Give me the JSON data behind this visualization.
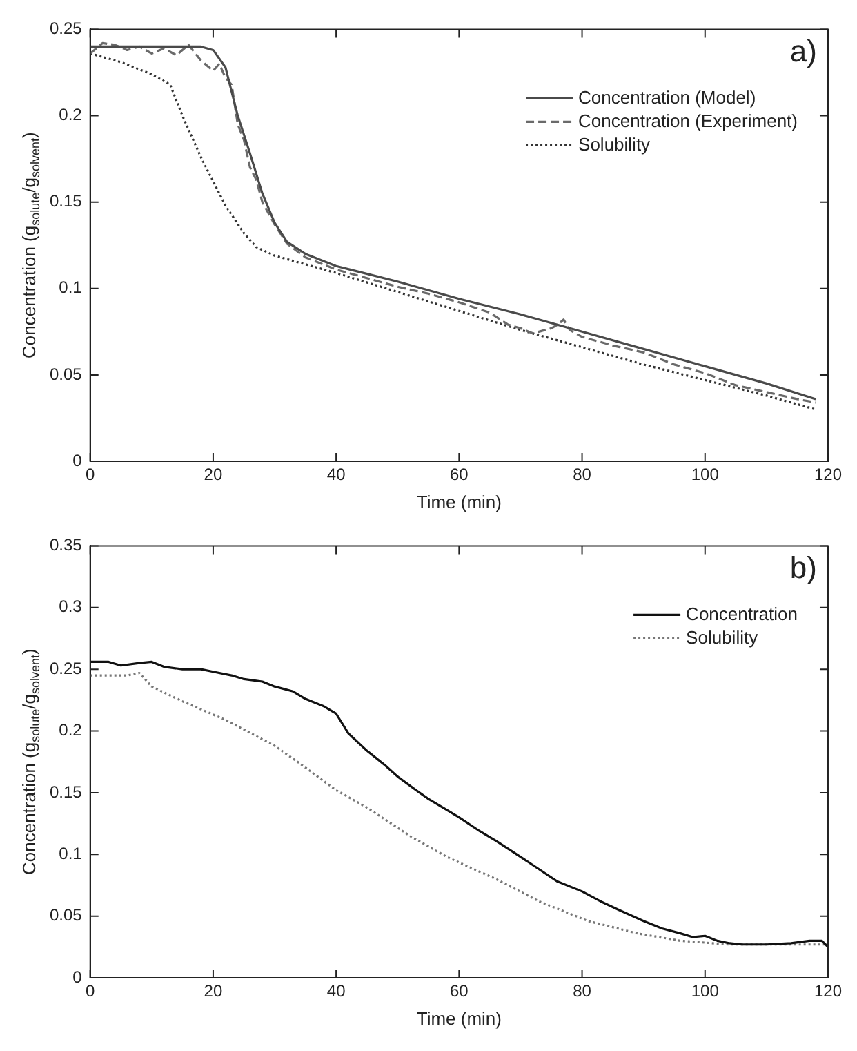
{
  "chart_data": [
    {
      "type": "line",
      "xlabel": "Time (min)",
      "ylabel": "Concentration (g$_{solute}$/g$_{solvent}$)",
      "annotations": [
        "a)"
      ],
      "xlim": [
        0,
        120
      ],
      "xticks": [
        0,
        20,
        40,
        60,
        80,
        100,
        120
      ],
      "ylim": [
        0,
        0.25
      ],
      "yticks": [
        0,
        0.05,
        0.1,
        0.15,
        0.2,
        0.25
      ],
      "grid": false,
      "legend": "top right",
      "marker": "none",
      "series": [
        {
          "name": "Concentration (Model)",
          "color": "#4a4a4a",
          "line_style": "solid",
          "x": [
            0,
            5,
            10,
            15,
            18,
            20,
            22,
            24,
            26,
            28,
            30,
            32,
            35,
            40,
            50,
            60,
            70,
            80,
            90,
            100,
            110,
            118
          ],
          "values": [
            0.24,
            0.24,
            0.24,
            0.24,
            0.24,
            0.238,
            0.228,
            0.2,
            0.178,
            0.155,
            0.138,
            0.127,
            0.12,
            0.113,
            0.104,
            0.094,
            0.085,
            0.075,
            0.065,
            0.055,
            0.045,
            0.036
          ]
        },
        {
          "name": "Concentration (Experiment)",
          "color": "#6a6a6a",
          "line_style": "dashed",
          "x": [
            0,
            2,
            4,
            6,
            8,
            10,
            12,
            14,
            16,
            18,
            20,
            21,
            22,
            23,
            24,
            25,
            26,
            27,
            28,
            30,
            32,
            35,
            40,
            45,
            50,
            55,
            60,
            65,
            68,
            70,
            72,
            75,
            76,
            77,
            78,
            80,
            85,
            90,
            95,
            100,
            105,
            110,
            115,
            118
          ],
          "values": [
            0.236,
            0.242,
            0.241,
            0.238,
            0.24,
            0.236,
            0.239,
            0.235,
            0.241,
            0.232,
            0.226,
            0.23,
            0.222,
            0.218,
            0.195,
            0.186,
            0.17,
            0.163,
            0.15,
            0.137,
            0.126,
            0.118,
            0.111,
            0.106,
            0.101,
            0.097,
            0.092,
            0.086,
            0.079,
            0.077,
            0.074,
            0.077,
            0.079,
            0.082,
            0.076,
            0.072,
            0.067,
            0.063,
            0.056,
            0.051,
            0.044,
            0.04,
            0.036,
            0.034
          ]
        },
        {
          "name": "Solubility",
          "color": "#333333",
          "line_style": "dotted",
          "x": [
            0,
            5,
            10,
            13,
            15,
            18,
            20,
            22,
            25,
            27,
            30,
            35,
            40,
            50,
            60,
            70,
            80,
            90,
            100,
            110,
            118
          ],
          "values": [
            0.236,
            0.231,
            0.224,
            0.218,
            0.2,
            0.176,
            0.162,
            0.148,
            0.132,
            0.124,
            0.119,
            0.114,
            0.109,
            0.098,
            0.087,
            0.076,
            0.066,
            0.056,
            0.047,
            0.038,
            0.03
          ]
        }
      ]
    },
    {
      "type": "line",
      "xlabel": "Time (min)",
      "ylabel": "Concentration (g$_{solute}$/g$_{solvent}$)",
      "annotations": [
        "b)"
      ],
      "xlim": [
        0,
        120
      ],
      "xticks": [
        0,
        20,
        40,
        60,
        80,
        100,
        120
      ],
      "ylim": [
        0,
        0.35
      ],
      "yticks": [
        0,
        0.05,
        0.1,
        0.15,
        0.2,
        0.25,
        0.3,
        0.35
      ],
      "grid": false,
      "legend": "top right",
      "marker": "none",
      "series": [
        {
          "name": "Concentration",
          "color": "#111111",
          "line_style": "solid",
          "x": [
            0,
            3,
            5,
            8,
            10,
            12,
            15,
            18,
            20,
            23,
            25,
            28,
            30,
            33,
            35,
            38,
            40,
            42,
            45,
            48,
            50,
            53,
            55,
            58,
            60,
            63,
            66,
            70,
            73,
            76,
            80,
            83,
            86,
            90,
            93,
            96,
            98,
            100,
            102,
            104,
            106,
            110,
            114,
            117,
            119,
            120
          ],
          "values": [
            0.256,
            0.256,
            0.253,
            0.255,
            0.256,
            0.252,
            0.25,
            0.25,
            0.248,
            0.245,
            0.242,
            0.24,
            0.236,
            0.232,
            0.226,
            0.22,
            0.214,
            0.198,
            0.184,
            0.172,
            0.163,
            0.152,
            0.145,
            0.136,
            0.13,
            0.12,
            0.111,
            0.098,
            0.088,
            0.078,
            0.07,
            0.062,
            0.055,
            0.046,
            0.04,
            0.036,
            0.033,
            0.034,
            0.03,
            0.028,
            0.027,
            0.027,
            0.028,
            0.03,
            0.03,
            0.025
          ]
        },
        {
          "name": "Solubility",
          "color": "#777777",
          "line_style": "dotted",
          "x": [
            0,
            6,
            8,
            10,
            15,
            22,
            30,
            34,
            40,
            45,
            52,
            58,
            66,
            73,
            81,
            89,
            96,
            104,
            110,
            116,
            120
          ],
          "values": [
            0.245,
            0.245,
            0.247,
            0.236,
            0.224,
            0.209,
            0.188,
            0.174,
            0.152,
            0.138,
            0.115,
            0.098,
            0.08,
            0.062,
            0.046,
            0.036,
            0.03,
            0.027,
            0.027,
            0.027,
            0.027
          ]
        }
      ]
    }
  ]
}
